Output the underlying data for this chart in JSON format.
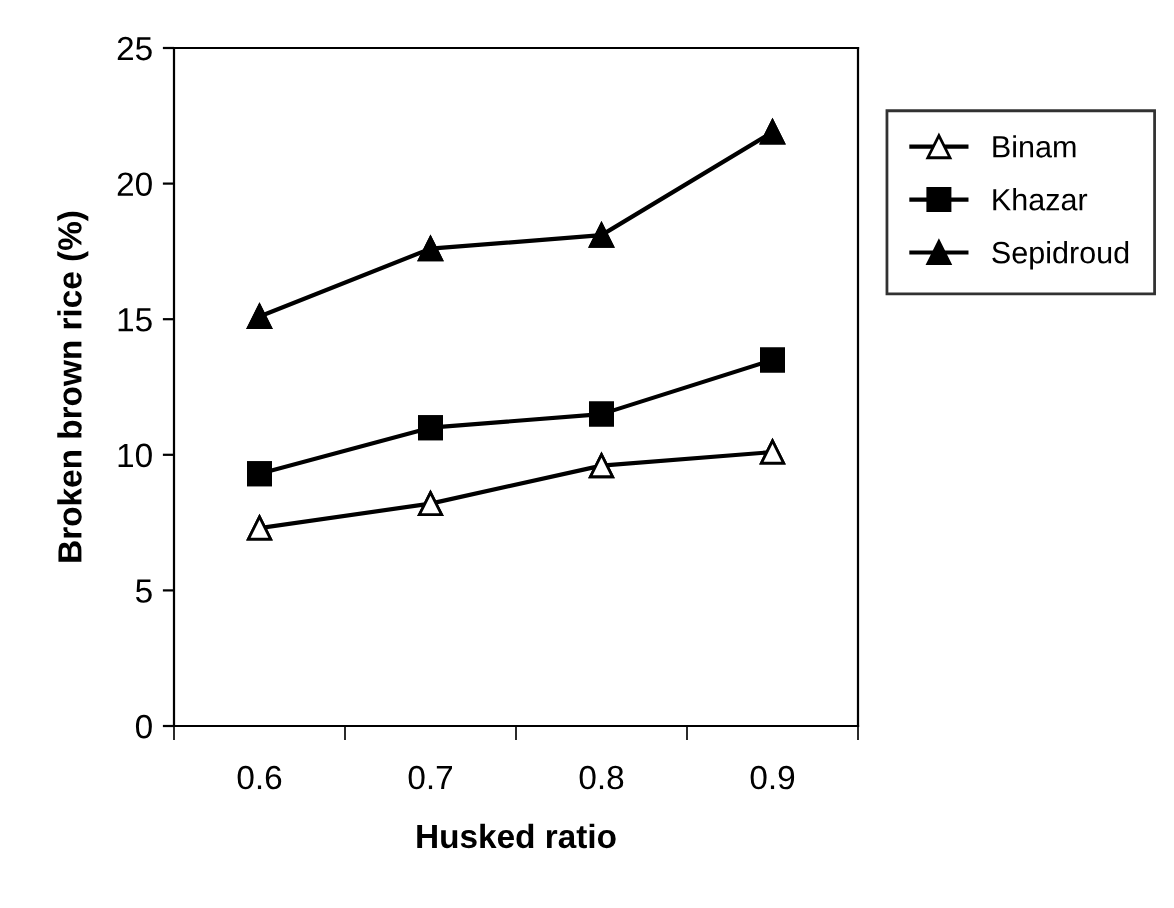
{
  "chart_data": {
    "type": "line",
    "xlabel": "Husked ratio",
    "ylabel": "Broken brown rice (%)",
    "categories": [
      "0.6",
      "0.7",
      "0.8",
      "0.9"
    ],
    "series": [
      {
        "name": "Binam",
        "color": "#000000",
        "marker": "triangle",
        "colors": [
          "#ffffff",
          "#ffffff",
          "#ffffff",
          "#ffffff"
        ],
        "values": [
          7.3,
          8.2,
          9.6,
          10.1
        ]
      },
      {
        "name": "Khazar",
        "color": "#000000",
        "marker": "square",
        "values": [
          9.3,
          11.0,
          11.5,
          13.5
        ]
      },
      {
        "name": "Sepidroud",
        "color": "#000000",
        "marker": "triangle",
        "values": [
          15.1,
          17.6,
          18.1,
          21.9
        ]
      }
    ],
    "ylim": [
      0,
      25
    ],
    "yticks": [
      0,
      5,
      10,
      15,
      20,
      25
    ],
    "grid": false,
    "legend": "top right",
    "line_style": "solid"
  }
}
